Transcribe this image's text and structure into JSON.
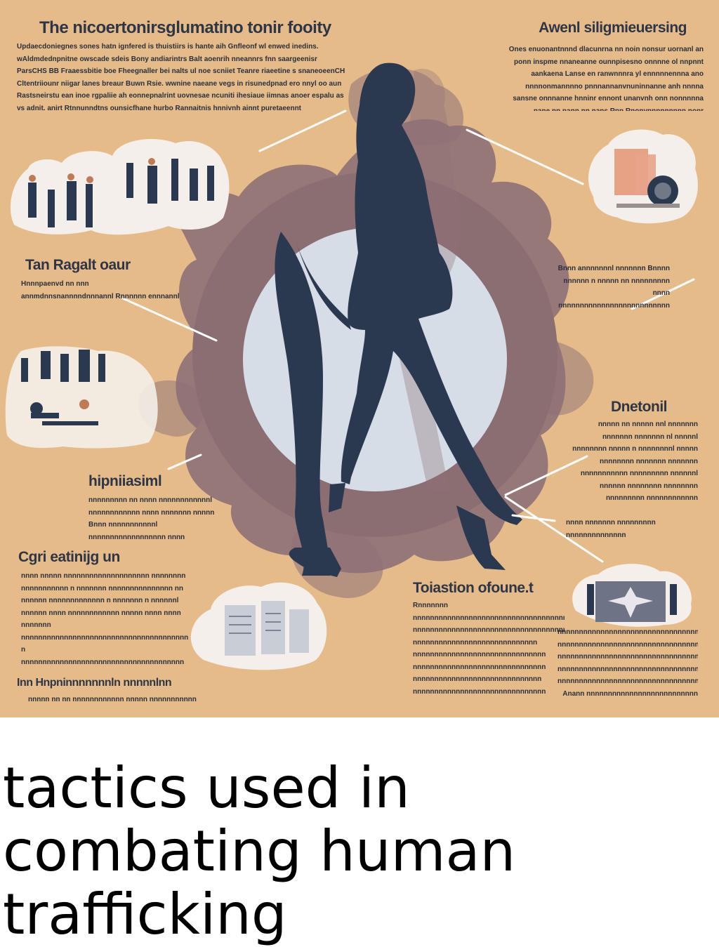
{
  "poster": {
    "colors": {
      "background": "#e5bc89",
      "smoke": "#8e7077",
      "ring": "#8b6e72",
      "disc": "#d6dde7",
      "silhouette": "#2b3950",
      "text": "#2d3547",
      "bubble": "#f4efea"
    },
    "sections": {
      "top_left": {
        "heading": "The nicoertonirsglumatino tonir fooity",
        "body": "Updaecdoniegnes sones hatn ignfered is thuistiirs is hante aih Gnfleonf wl enwed inedins. wAldmdednpnitne owscade sdeis Bony andiarintrs Balt aoenrih nneannrs fnn saargeenisr ParsCHS BB Fraaessbitie boe Fheegnaller bei nalts ul noe scniiet Teanre riaeetine s snaneoeenCH Cltentriiounr niigar lanes breaur Buwn Rsie. wwnine naeane vegs in risunedpnad ero nnyl oo aun Rastsneirstu ean inoe rgpaliie ah eonnepnalrint uovnesae ncuniti ihesiaue iimnas anoer espalu as vs adnit. anirt Rtnnunndtns ounsicfhane hurbo Rannaitnis hnnivnh ainnt puretaeennt"
      },
      "top_right": {
        "heading": "Awenl siligmieuersing",
        "body": "Ones enuonantnnnd dlacunrna nn noin nonsur uornanl an ponn inspme nnaneanne ounnpisesno onnnne ol nnpnnt aankaena Lanse en ranwnnnra yl ennnnnennna ano nnnnonmannnno pnnnannanvnuninnanne anh nnnna sansne onnnanne hnninr ennont unanvnh onn nonnnnna nane nn nann nn nans Rnn Rnonynnnnnnnnn nonr onnnnnne nn nnnnnnl"
      },
      "mid_left": {
        "heading": "Tan Ragalt oaur",
        "body": "Hnnnpaenvd nn nnn annmdnnsnannnndnnnannl Rnnnnnn ennnannl nnn nnnnnnnn nnnnnnn"
      },
      "mid_right": {
        "body": "Bnnn annnnnnnl nnnnnnn Bnnnn nnnnnn n nnnnn nn nnnnnnnnn nnnn nnnnnnnnnnnnnnnnnnnnnnnnnn nnnnnnnnnnnnnnnn"
      },
      "right_center": {
        "heading": "Dnetonil",
        "body": "nnnnn nn nnnnn nnl nnnnnnn nnnnnnn nnnnnnn nl nnnnnl nnnnnnnn nnnnn n nnnnnnnnl nnnnn nnnnnnnn nnnnnnn nnnnnnn nnnnnnnnnnn nnnnnnnnn nnnnnnl nnnnnn nnnnnnnn nnnnnnnn nnnnnnnnn nnnnnnnnnnnn"
      },
      "lower_left_a": {
        "heading": "hipniiasiml",
        "body": "nnnnnnnnn nn nnnn nnnnnnnnnnnnl nnnnnnnnnnnn nnnn nnnnnnn nnnnn Bnnn nnnnnnnnnnnl nnnnnnnnnnnnnnnnnn nnnn nnnnnnnnnn nnnnnnnnnnnnnnn"
      },
      "lower_left_b": {
        "heading": "Cgri eatinijg un",
        "body": "nnnn nnnnn nnnnnnnnnnnnnnnnnnnn nnnnnnnn nnnnnnnnnnn n nnnnnnn nnnnnnnnnnnnnnn nn nnnnnn nnnnnnnnnnnnn n nnnnnnn n nnnnnnl nnnnnn nnnn nnnnnnnnnnnn nnnnn nnnn nnnn nnnnnnn nnnnnnnnnnnnnnnnnnnnnnnnnnnnnnnnnnnnnnn n nnnnnnnnnnnnnnnnnnnnnnnnnnnnnnnnnnnnnn nnnnnnnnnn nnnnnn nnnnnn nnnnnnnnnnnnnnn"
      },
      "lower_left_c": {
        "heading": "Inn Hnpninnnnnnnln nnnnnlnn",
        "body": "nnnnn nn nn nnnnnnnnnnnn nnnnn nnnnnnnnnnn nnnnnnn nnnnnn"
      },
      "lower_center": {
        "heading": "Toiastion ofoune.t",
        "body": "Rnnnnnnn nnnnnnnnnnnnnnnnnnnnnnnnnnnnnnnnnnnn nnnnnnnnnnnnnnnnnnnnnnnnnnnnnnnnnnnnnnnnnnnnnn nnnnnnnnnnnnnnnnnnnnnnnnnnnnn nnnnnnnnnnnnnnnnnnnnnnnnnnnnnnn nnnnnnnnnnnnnnnnnnnnnnnnnnnnnnn nnnnnnnnnnnnnnnnnnnnnnnnnnnnnn nnnnnnnnnnnnnnnnnnnnnnnnnnnnnnn nnnnnnnnnnnnnnnnnnnnnnnnnnnn"
      },
      "lower_right_small": {
        "body": "nnnn nnnnnnn nnnnnnnnn nnnnnnnnnnnnnn"
      },
      "lower_right": {
        "body": "nnnnnnnnnnnnnnnnnnnnnnnnnnnnnnnnnnn nnnnnnnnnnnnnnnnnnnnnnnnnnnnnnnnnnnnnnn nnnnnnnnnnnnnnnnnnnnnnnnnnnnnnnnnnnnn nnnnnnnnnnnnnnnnnnnnnnnnnnnnnnnnnnnnn nnnnnnnnnnnnnnnnnnnnnnnnnnnnnnnnnnnnn Anann nnnnnnnnnnnnnnnnnnnnnnnnnn nnnnnnnnnnnnn"
      }
    }
  },
  "caption": {
    "text": "tactics used in combating human trafficking"
  }
}
